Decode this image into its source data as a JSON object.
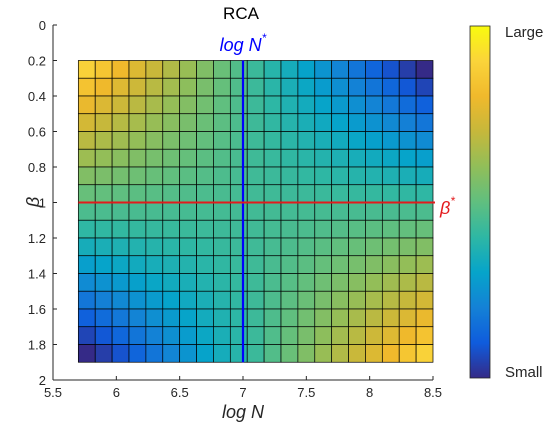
{
  "chart_data": {
    "type": "heatmap",
    "title": "RCA",
    "xlabel": "log N",
    "ylabel": "β",
    "xlim": [
      5.5,
      8.5
    ],
    "ylim": [
      0,
      2
    ],
    "y_reversed": true,
    "x_ticks": [
      "5.5",
      "6",
      "6.5",
      "7",
      "7.5",
      "8",
      "8.5"
    ],
    "y_ticks": [
      "0",
      "0.2",
      "0.4",
      "0.6",
      "0.8",
      "1",
      "1.2",
      "1.4",
      "1.6",
      "1.8",
      "2"
    ],
    "grid": {
      "x_start": 5.7,
      "x_end": 8.5,
      "x_count": 21,
      "y_start": 0.2,
      "y_end": 1.9,
      "y_count": 17
    },
    "colorbar": {
      "colormap": "parula",
      "top_label": "Large",
      "bottom_label": "Small"
    },
    "vertical_line": {
      "x": 7,
      "color": "#0000ff",
      "label_main": "log N",
      "label_sup": "*"
    },
    "horizontal_line": {
      "y": 1,
      "color": "#e31a1c",
      "label_main": "β",
      "label_sup": "*"
    },
    "value_model": "higher where log N is far from 7 in the direction matching β (low logN with low β, high logN with high β); minimum near the β* and log N* crossing"
  }
}
